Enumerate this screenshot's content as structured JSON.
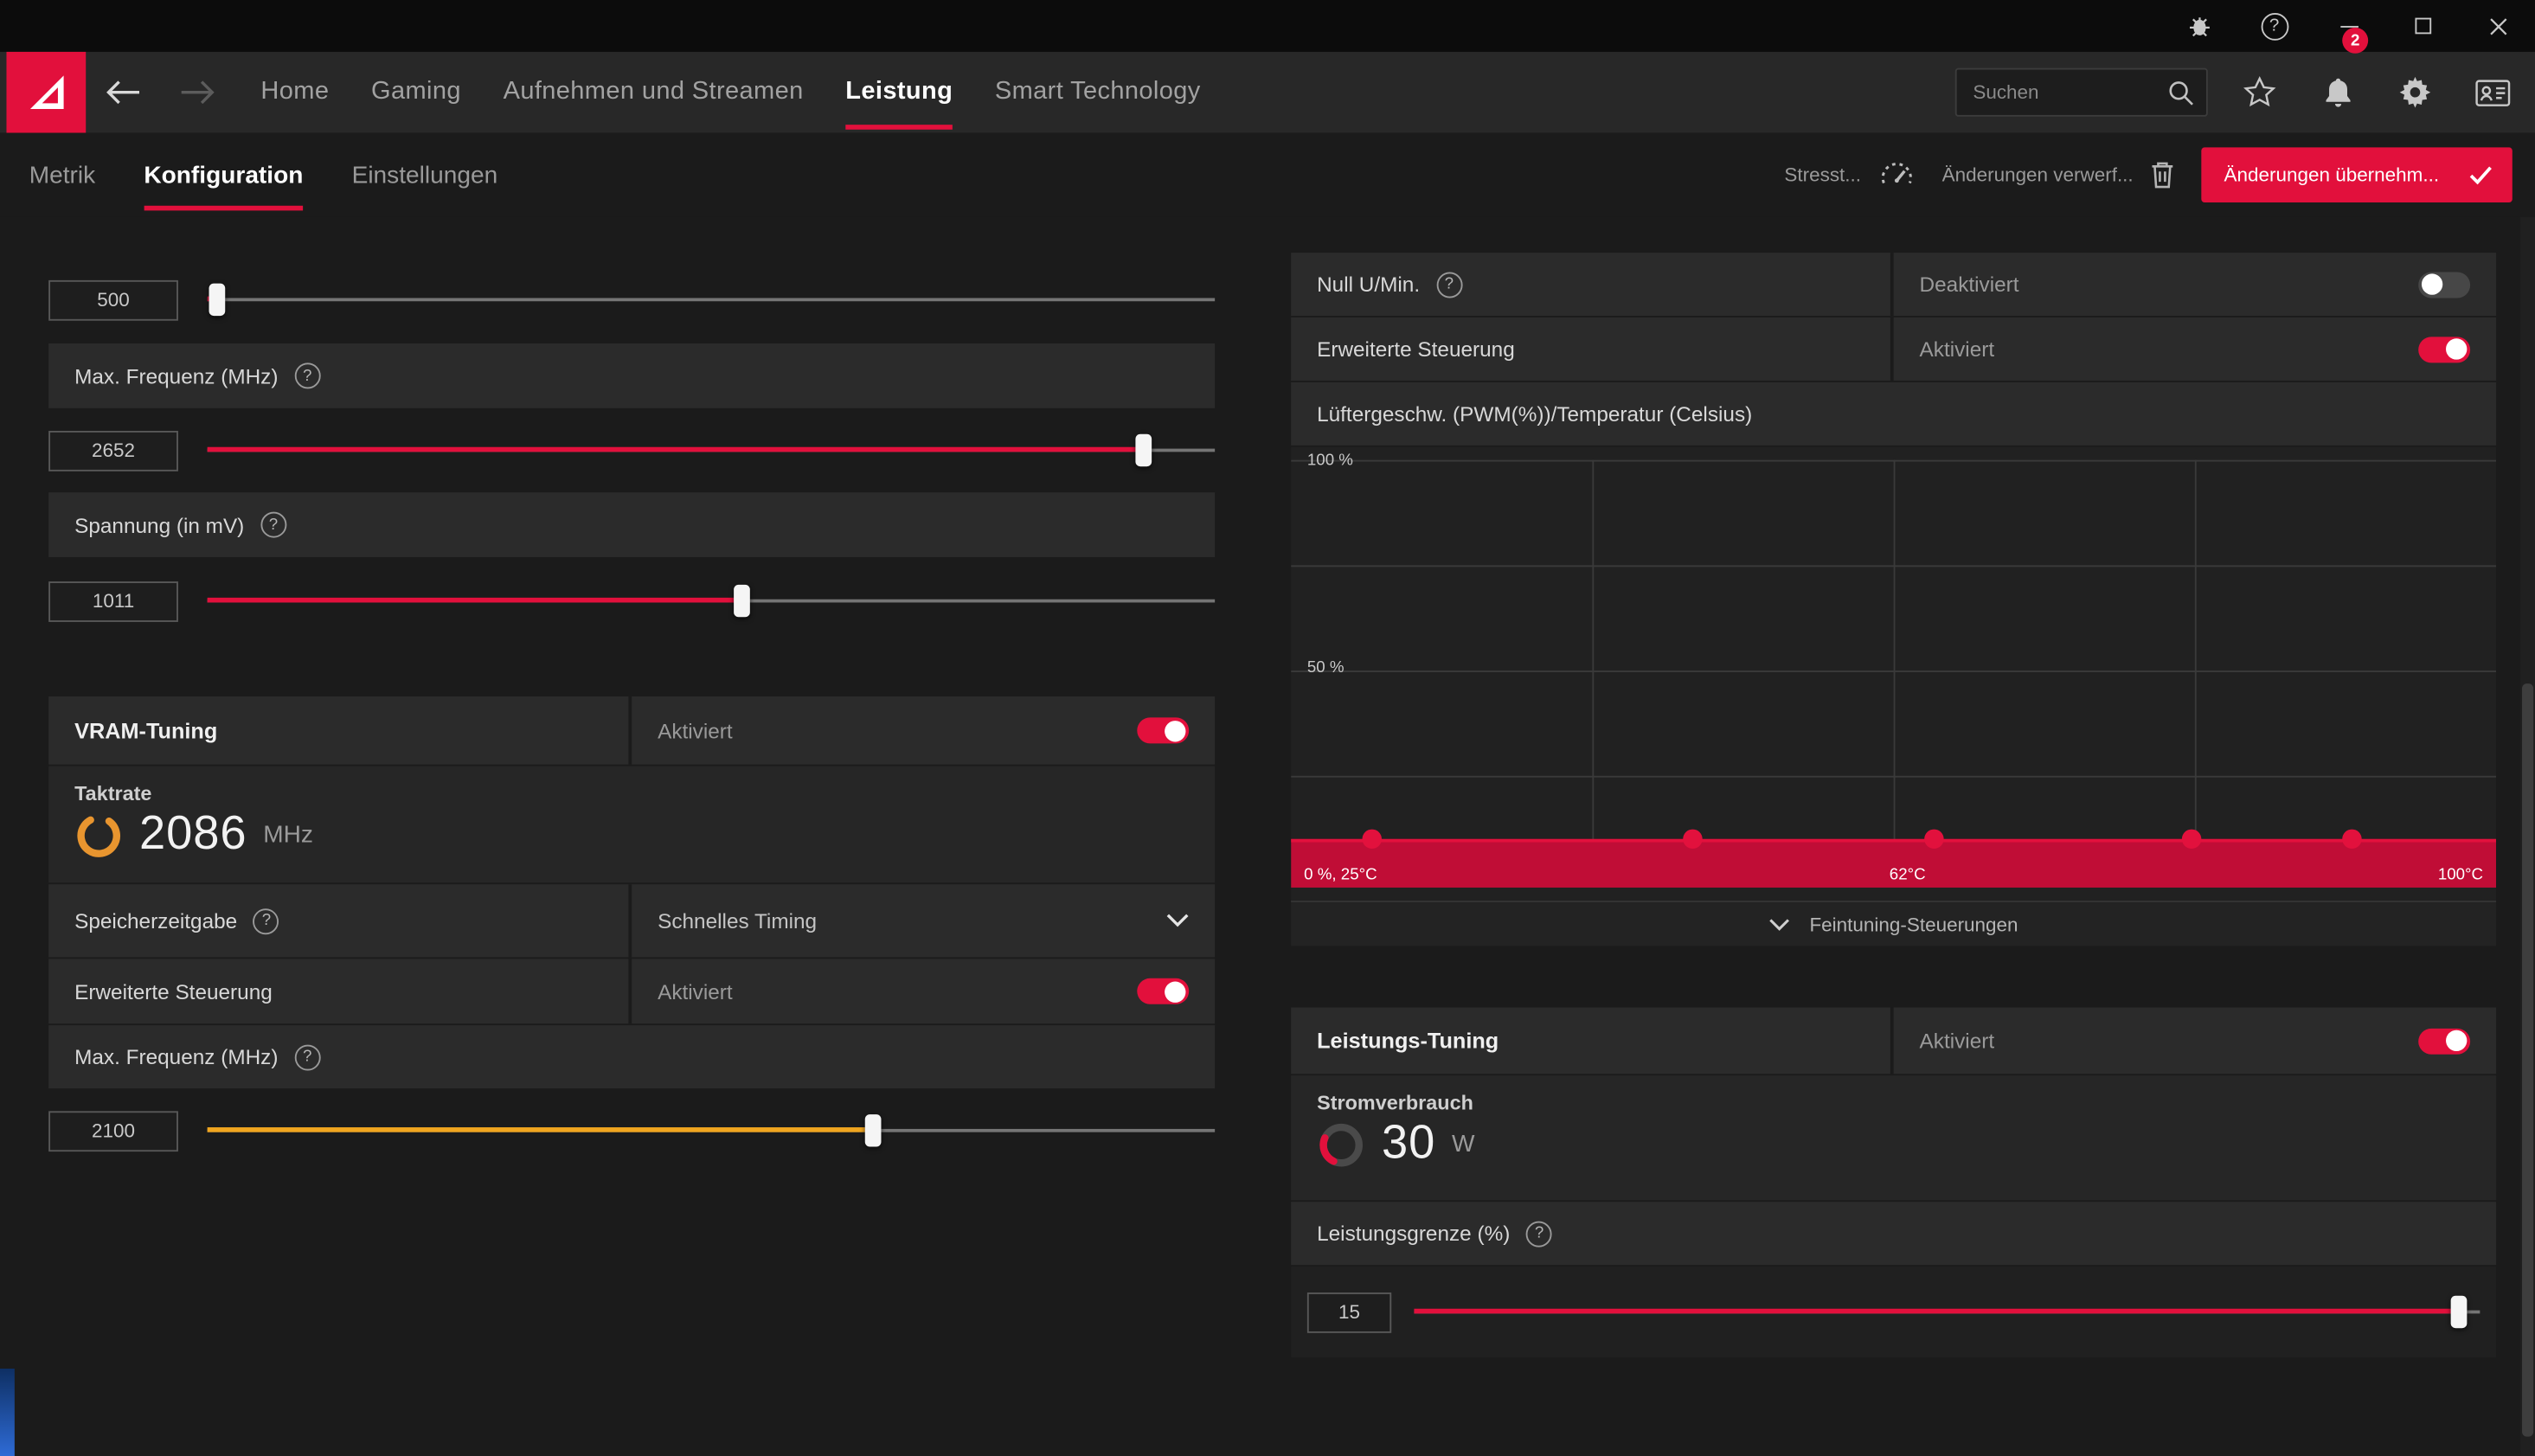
{
  "colors": {
    "accent": "#e2103c",
    "amber": "#f0a51f",
    "band": "#c00d36",
    "dot": "#e2113d",
    "gauge_orange": "#e8952f",
    "gauge_gray": "#4a4a4a"
  },
  "titlebar": {
    "icons": [
      "bug-report",
      "help",
      "minimize",
      "maximize",
      "close"
    ]
  },
  "nav": {
    "items": [
      {
        "label": "Home"
      },
      {
        "label": "Gaming"
      },
      {
        "label": "Aufnehmen und Streamen"
      },
      {
        "label": "Leistung"
      },
      {
        "label": "Smart Technology"
      }
    ],
    "active": "Leistung",
    "search": {
      "placeholder": "Suchen"
    },
    "notification_count": "2"
  },
  "subnav": {
    "tabs": [
      {
        "label": "Metrik"
      },
      {
        "label": "Konfiguration"
      },
      {
        "label": "Einstellungen"
      }
    ],
    "active": "Konfiguration",
    "stress_label": "Stresst...",
    "discard_label": "Änderungen verwerf...",
    "apply_label": "Änderungen übernehm..."
  },
  "tuning": {
    "min_frequency": {
      "value": "500",
      "percent": 1
    },
    "max_frequency": {
      "label": "Max. Frequenz (MHz)",
      "value": "2652",
      "percent": 93
    },
    "voltage": {
      "label": "Spannung (in mV)",
      "value": "1011",
      "percent": 53
    },
    "vram": {
      "title": "VRAM-Tuning",
      "status": "Aktiviert",
      "toggle_on": true,
      "clock_label": "Taktrate",
      "clock_value": "2086",
      "clock_unit": "MHz",
      "timing_label": "Speicherzeitgabe",
      "timing_value": "Schnelles Timing",
      "advanced_label": "Erweiterte Steuerung",
      "advanced_status": "Aktiviert",
      "advanced_toggle_on": true,
      "max_frequency_label": "Max. Frequenz (MHz)",
      "max_frequency_value": "2100",
      "max_frequency_percent": 66
    },
    "fan": {
      "zero_rpm_label": "Null U/Min.",
      "zero_rpm_status": "Deaktiviert",
      "zero_rpm_toggle_on": false,
      "advanced_label": "Erweiterte Steuerung",
      "advanced_status": "Aktiviert",
      "advanced_toggle_on": true,
      "chart_title": "Lüftergeschw. (PWM(%))/Temperatur (Celsius)",
      "fine_tuning_label": "Feintuning-Steuerungen"
    },
    "power": {
      "title": "Leistungs-Tuning",
      "status": "Aktiviert",
      "toggle_on": true,
      "consumption_label": "Stromverbrauch",
      "consumption_value": "30",
      "consumption_unit": "W",
      "limit_label": "Leistungsgrenze (%)",
      "limit_value": "15",
      "limit_percent": 98
    }
  },
  "chart_data": {
    "type": "area",
    "title": "Lüftergeschw. (PWM(%))/Temperatur (Celsius)",
    "x": [
      30,
      50,
      65,
      81,
      91
    ],
    "y": [
      10,
      10,
      10,
      10,
      10
    ],
    "xlim": [
      25,
      100
    ],
    "ylim": [
      0,
      100
    ],
    "x_unit": "°C",
    "y_unit": "% PWM",
    "grid": true,
    "y_axis_labels": [
      "100 %",
      "50 %"
    ],
    "x_axis_labels": [
      "0 %, 25°C",
      "62°C",
      "100°C"
    ],
    "legend": "none"
  }
}
